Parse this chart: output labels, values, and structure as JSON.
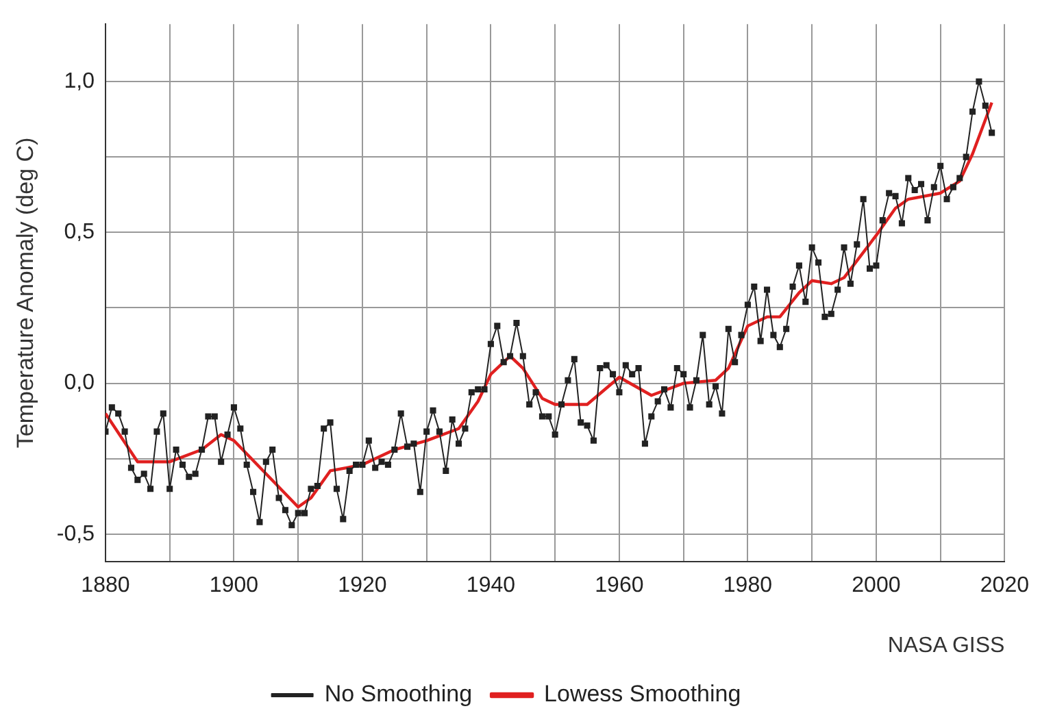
{
  "chart_data": {
    "type": "line",
    "ylabel": "Temperature Anomaly (deg C)",
    "annotations": [
      "NASA GISS"
    ],
    "xlim": [
      1880,
      2020
    ],
    "xticks": [
      1880,
      {
        "value": 1890,
        "label": null
      },
      1900,
      {
        "value": 1910,
        "label": null
      },
      1920,
      {
        "value": 1930,
        "label": null
      },
      1940,
      {
        "value": 1950,
        "label": null
      },
      1960,
      {
        "value": 1970,
        "label": null
      },
      1980,
      {
        "value": 1990,
        "label": null
      },
      2000,
      {
        "value": 2010,
        "label": null
      },
      2020
    ],
    "ylim": [
      -0.59,
      1.19
    ],
    "yticks": [
      {
        "value": -0.5,
        "label": "-0,5"
      },
      {
        "value": -0.25,
        "label": null
      },
      {
        "value": 0,
        "label": "0,0"
      },
      {
        "value": 0.25,
        "label": null
      },
      {
        "value": 0.5,
        "label": "0,5"
      },
      {
        "value": 0.75,
        "label": null
      },
      {
        "value": 1,
        "label": "1,0"
      }
    ],
    "grid": true,
    "legend": "bottom",
    "line_style": "solid",
    "series": [
      {
        "name": "No Smoothing",
        "color": "#222222",
        "marker": "square",
        "x": [
          1880,
          1881,
          1882,
          1883,
          1884,
          1885,
          1886,
          1887,
          1888,
          1889,
          1890,
          1891,
          1892,
          1893,
          1894,
          1895,
          1896,
          1897,
          1898,
          1899,
          1900,
          1901,
          1902,
          1903,
          1904,
          1905,
          1906,
          1907,
          1908,
          1909,
          1910,
          1911,
          1912,
          1913,
          1914,
          1915,
          1916,
          1917,
          1918,
          1919,
          1920,
          1921,
          1922,
          1923,
          1924,
          1925,
          1926,
          1927,
          1928,
          1929,
          1930,
          1931,
          1932,
          1933,
          1934,
          1935,
          1936,
          1937,
          1938,
          1939,
          1940,
          1941,
          1942,
          1943,
          1944,
          1945,
          1946,
          1947,
          1948,
          1949,
          1950,
          1951,
          1952,
          1953,
          1954,
          1955,
          1956,
          1957,
          1958,
          1959,
          1960,
          1961,
          1962,
          1963,
          1964,
          1965,
          1966,
          1967,
          1968,
          1969,
          1970,
          1971,
          1972,
          1973,
          1974,
          1975,
          1976,
          1977,
          1978,
          1979,
          1980,
          1981,
          1982,
          1983,
          1984,
          1985,
          1986,
          1987,
          1988,
          1989,
          1990,
          1991,
          1992,
          1993,
          1994,
          1995,
          1996,
          1997,
          1998,
          1999,
          2000,
          2001,
          2002,
          2003,
          2004,
          2005,
          2006,
          2007,
          2008,
          2009,
          2010,
          2011,
          2012,
          2013,
          2014,
          2015,
          2016,
          2017,
          2018
        ],
        "values": [
          -0.16,
          -0.08,
          -0.1,
          -0.16,
          -0.28,
          -0.32,
          -0.3,
          -0.35,
          -0.16,
          -0.1,
          -0.35,
          -0.22,
          -0.27,
          -0.31,
          -0.3,
          -0.22,
          -0.11,
          -0.11,
          -0.26,
          -0.17,
          -0.08,
          -0.15,
          -0.27,
          -0.36,
          -0.46,
          -0.26,
          -0.22,
          -0.38,
          -0.42,
          -0.47,
          -0.43,
          -0.43,
          -0.35,
          -0.34,
          -0.15,
          -0.13,
          -0.35,
          -0.45,
          -0.29,
          -0.27,
          -0.27,
          -0.19,
          -0.28,
          -0.26,
          -0.27,
          -0.22,
          -0.1,
          -0.21,
          -0.2,
          -0.36,
          -0.16,
          -0.09,
          -0.16,
          -0.29,
          -0.12,
          -0.2,
          -0.15,
          -0.03,
          -0.02,
          -0.02,
          0.13,
          0.19,
          0.07,
          0.09,
          0.2,
          0.09,
          -0.07,
          -0.03,
          -0.11,
          -0.11,
          -0.17,
          -0.07,
          0.01,
          0.08,
          -0.13,
          -0.14,
          -0.19,
          0.05,
          0.06,
          0.03,
          -0.03,
          0.06,
          0.03,
          0.05,
          -0.2,
          -0.11,
          -0.06,
          -0.02,
          -0.08,
          0.05,
          0.03,
          -0.08,
          0.01,
          0.16,
          -0.07,
          -0.01,
          -0.1,
          0.18,
          0.07,
          0.16,
          0.26,
          0.32,
          0.14,
          0.31,
          0.16,
          0.12,
          0.18,
          0.32,
          0.39,
          0.27,
          0.45,
          0.4,
          0.22,
          0.23,
          0.31,
          0.45,
          0.33,
          0.46,
          0.61,
          0.38,
          0.39,
          0.54,
          0.63,
          0.62,
          0.53,
          0.68,
          0.64,
          0.66,
          0.54,
          0.65,
          0.72,
          0.61,
          0.65,
          0.68,
          0.75,
          0.9,
          1.0,
          0.92,
          0.83
        ]
      },
      {
        "name": "Lowess Smoothing",
        "color": "#e02020",
        "marker": "none",
        "x": [
          1880,
          1885,
          1890,
          1895,
          1898,
          1900,
          1905,
          1910,
          1912,
          1915,
          1920,
          1925,
          1930,
          1935,
          1938,
          1940,
          1943,
          1945,
          1948,
          1950,
          1955,
          1960,
          1965,
          1970,
          1975,
          1977,
          1980,
          1983,
          1985,
          1988,
          1990,
          1993,
          1995,
          2000,
          2003,
          2005,
          2010,
          2013,
          2015,
          2018
        ],
        "values": [
          -0.1,
          -0.26,
          -0.26,
          -0.22,
          -0.17,
          -0.19,
          -0.3,
          -0.41,
          -0.38,
          -0.29,
          -0.27,
          -0.22,
          -0.19,
          -0.15,
          -0.06,
          0.03,
          0.09,
          0.05,
          -0.05,
          -0.07,
          -0.07,
          0.02,
          -0.04,
          0.0,
          0.01,
          0.05,
          0.19,
          0.22,
          0.22,
          0.3,
          0.34,
          0.33,
          0.35,
          0.49,
          0.58,
          0.61,
          0.63,
          0.67,
          0.76,
          0.93
        ]
      }
    ]
  }
}
